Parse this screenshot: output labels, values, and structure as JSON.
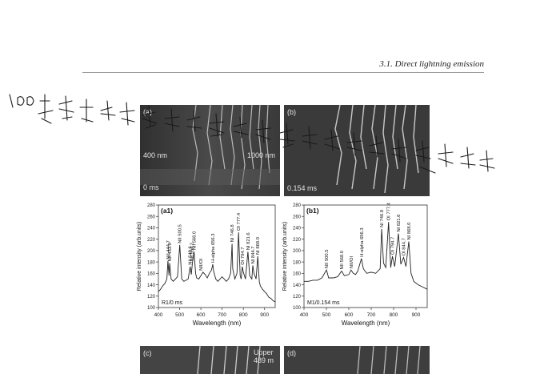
{
  "header": {
    "text": "3.1.  Direct lightning emission"
  },
  "photos": {
    "a": {
      "label": "(a)",
      "nm_left": "400 nm",
      "nm_right": "1000 nm",
      "time": "0 ms"
    },
    "b": {
      "label": "(b)",
      "time": "0.154 ms"
    },
    "c": {
      "label": "(c)",
      "note": "Upper\n489 m"
    },
    "d": {
      "label": "(d)"
    }
  },
  "handwriting": "1.0 范河哈去好多河亨士得威林哈哈进治法得年安法就他去残教授",
  "chart_data": [
    {
      "type": "line",
      "panel_label": "(a1)",
      "inset_label": "R1/0 ms",
      "xlabel": "Wavelength (nm)",
      "ylabel": "Relative intensity (arb.units)",
      "xlim": [
        400,
        950
      ],
      "ylim": [
        100,
        280
      ],
      "xticks": [
        400,
        500,
        600,
        700,
        800,
        900
      ],
      "yticks": [
        100,
        120,
        140,
        160,
        180,
        200,
        220,
        240,
        260,
        280
      ],
      "series": [
        {
          "x": [
            400,
            410,
            420,
            430,
            440,
            444.7,
            450,
            453,
            460,
            470,
            480,
            490,
            500.5,
            510,
            520,
            530,
            540,
            549.6,
            555,
            560,
            568,
            575,
            580,
            590,
            600,
            610,
            620,
            630,
            640,
            650,
            656.3,
            660,
            670,
            680,
            690,
            700,
            710,
            720,
            730,
            740,
            746.8,
            750,
            760,
            770,
            777.4,
            785,
            790,
            794.7,
            800,
            810,
            821.6,
            830,
            840,
            844.7,
            850,
            860,
            868,
            875,
            880,
            890,
            900,
            910,
            920,
            930,
            940,
            950
          ],
          "y": [
            128,
            132,
            138,
            142,
            150,
            182,
            156,
            178,
            150,
            146,
            150,
            154,
            210,
            150,
            146,
            148,
            150,
            172,
            158,
            178,
            198,
            160,
            152,
            150,
            156,
            162,
            158,
            152,
            160,
            166,
            176,
            164,
            150,
            146,
            150,
            154,
            150,
            146,
            150,
            160,
            212,
            168,
            150,
            160,
            232,
            156,
            150,
            172,
            162,
            150,
            198,
            156,
            150,
            174,
            160,
            150,
            190,
            146,
            138,
            132,
            128,
            124,
            118,
            116,
            112,
            110
          ]
        }
      ],
      "annotations": [
        {
          "text": "NII 444.7",
          "x": 444.7,
          "y": 182
        },
        {
          "text": "NII 453.0",
          "x": 453,
          "y": 178
        },
        {
          "text": "NII 500.5",
          "x": 500.5,
          "y": 210
        },
        {
          "text": "NII 549.6",
          "x": 549.6,
          "y": 172
        },
        {
          "text": "NII 554.2",
          "x": 556,
          "y": 178
        },
        {
          "text": "NII 568.0",
          "x": 568,
          "y": 198
        },
        {
          "text": "NII/OI",
          "x": 600,
          "y": 162
        },
        {
          "text": "H-alpha 656.3",
          "x": 656.3,
          "y": 176
        },
        {
          "text": "NI 746.8",
          "x": 746.8,
          "y": 212
        },
        {
          "text": "OI 777.4",
          "x": 777.4,
          "y": 232
        },
        {
          "text": "OI 794.7",
          "x": 794.7,
          "y": 172
        },
        {
          "text": "NI 821.6",
          "x": 821.6,
          "y": 198
        },
        {
          "text": "NI 844.7",
          "x": 844.7,
          "y": 174
        },
        {
          "text": "NI 868.0",
          "x": 868,
          "y": 190
        }
      ]
    },
    {
      "type": "line",
      "panel_label": "(b1)",
      "inset_label": "M1/0.154 ms",
      "xlabel": "Wavelength (nm)",
      "ylabel": "Relative intensity (arb.units)",
      "xlim": [
        400,
        950
      ],
      "ylim": [
        100,
        280
      ],
      "xticks": [
        400,
        500,
        600,
        700,
        800,
        900
      ],
      "yticks": [
        100,
        120,
        140,
        160,
        180,
        200,
        220,
        240,
        260,
        280
      ],
      "series": [
        {
          "x": [
            400,
            420,
            440,
            460,
            480,
            500.5,
            510,
            530,
            550,
            568,
            580,
            600,
            610,
            620,
            630,
            640,
            656.3,
            665,
            680,
            700,
            720,
            740,
            746.8,
            755,
            765,
            777.4,
            787,
            794.7,
            805,
            821.6,
            832,
            844.7,
            855,
            868,
            878,
            890,
            910,
            930,
            950
          ],
          "y": [
            146,
            146,
            148,
            148,
            152,
            166,
            152,
            152,
            154,
            164,
            156,
            158,
            166,
            160,
            158,
            164,
            186,
            168,
            160,
            162,
            160,
            168,
            238,
            178,
            170,
            250,
            170,
            190,
            172,
            230,
            176,
            188,
            172,
            216,
            160,
            146,
            140,
            136,
            132
          ]
        }
      ],
      "annotations": [
        {
          "text": "NII 500.5",
          "x": 500.5,
          "y": 166
        },
        {
          "text": "NII 568.0",
          "x": 568,
          "y": 164
        },
        {
          "text": "NII/OI",
          "x": 610,
          "y": 166
        },
        {
          "text": "H-alpha 656.3",
          "x": 656.3,
          "y": 186
        },
        {
          "text": "NI 746.8",
          "x": 746.8,
          "y": 238
        },
        {
          "text": "OI 777.4",
          "x": 777.4,
          "y": 250
        },
        {
          "text": "OI 794.7",
          "x": 794.7,
          "y": 190
        },
        {
          "text": "NI 821.6",
          "x": 821.6,
          "y": 230
        },
        {
          "text": "OI 844.7",
          "x": 844.7,
          "y": 188
        },
        {
          "text": "NI 868.0",
          "x": 868,
          "y": 216
        }
      ]
    }
  ]
}
